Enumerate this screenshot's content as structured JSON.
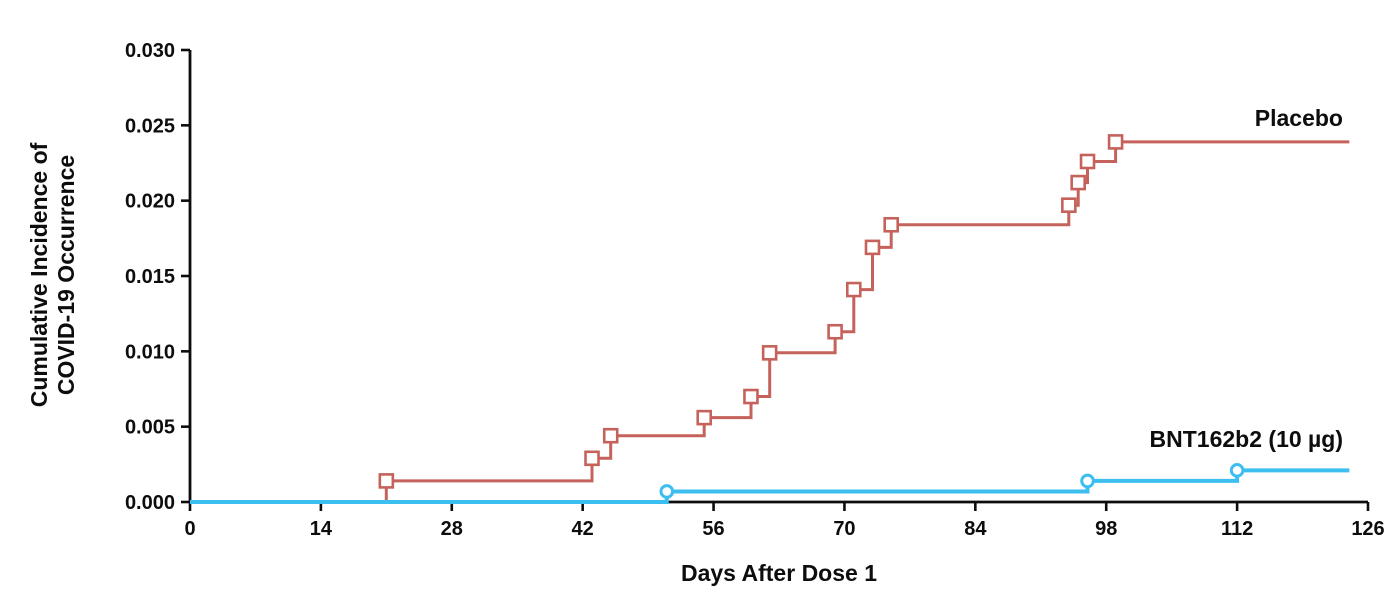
{
  "chart_data": {
    "type": "line",
    "subtype": "kaplan-meier-step",
    "title": "",
    "xlabel": "Days After Dose 1",
    "ylabel": "Cumulative Incidence of COVID-19 Occurrence",
    "ylabel_lines": [
      "Cumulative Incidence of",
      "COVID-19 Occurrence"
    ],
    "xlim": [
      0,
      126
    ],
    "ylim": [
      0,
      0.03
    ],
    "x_ticks": [
      0,
      14,
      28,
      42,
      56,
      70,
      84,
      98,
      112,
      126
    ],
    "y_ticks": [
      {
        "value": 0.0,
        "label": "0.000"
      },
      {
        "value": 0.005,
        "label": "0.005"
      },
      {
        "value": 0.01,
        "label": "0.010"
      },
      {
        "value": 0.015,
        "label": "0.015"
      },
      {
        "value": 0.02,
        "label": "0.020"
      },
      {
        "value": 0.025,
        "label": "0.025"
      },
      {
        "value": 0.03,
        "label": "0.030"
      }
    ],
    "grid": false,
    "legend_position": "labels-at-line-ends",
    "axis_color": "#0d0d0d",
    "series": [
      {
        "name": "Placebo",
        "color": "#c5625b",
        "marker": "open-square",
        "start": [
          0,
          0.0
        ],
        "events": [
          [
            21,
            0.0014
          ],
          [
            43,
            0.0029
          ],
          [
            45,
            0.0044
          ],
          [
            55,
            0.0056
          ],
          [
            60,
            0.007
          ],
          [
            62,
            0.0099
          ],
          [
            69,
            0.0113
          ],
          [
            71,
            0.0141
          ],
          [
            73,
            0.0169
          ],
          [
            75,
            0.0184
          ],
          [
            94,
            0.0197
          ],
          [
            95,
            0.0212
          ],
          [
            96,
            0.0226
          ],
          [
            99,
            0.0239
          ]
        ],
        "end_day": 124,
        "final_value": 0.0239
      },
      {
        "name": "BNT162b2 (10 µg)",
        "color": "#3cbef0",
        "marker": "open-circle",
        "start": [
          0,
          0.0
        ],
        "events": [
          [
            51,
            0.0007
          ],
          [
            96,
            0.0014
          ],
          [
            112,
            0.0021
          ]
        ],
        "end_day": 124,
        "final_value": 0.0021
      }
    ]
  }
}
